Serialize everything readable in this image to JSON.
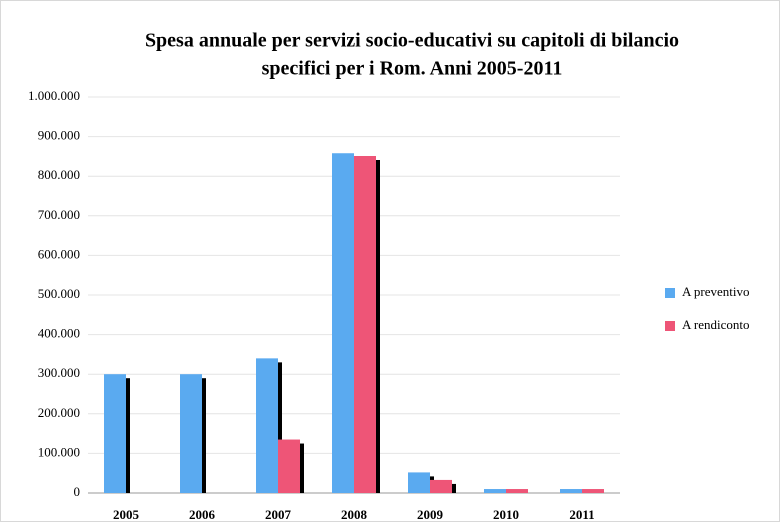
{
  "chart_data": {
    "type": "bar",
    "title": [
      "Spesa annuale per servizi socio-educativi su capitoli di bilancio",
      "specifici per i Rom. Anni 2005-2011"
    ],
    "categories": [
      "2005",
      "2006",
      "2007",
      "2008",
      "2009",
      "2010",
      "2011"
    ],
    "series": [
      {
        "name": "A preventivo",
        "color": "#5aaaf0",
        "values": [
          300000,
          300000,
          340000,
          858000,
          52000,
          10000,
          10000
        ]
      },
      {
        "name": "A rendiconto",
        "color": "#ee5577",
        "values": [
          0,
          0,
          135000,
          851000,
          33000,
          10000,
          10000
        ]
      }
    ],
    "ylim": [
      0,
      1000000
    ],
    "yticks": [
      0,
      {
        "value": 100000,
        "label": "100.000"
      },
      {
        "value": 200000,
        "label": "200.000"
      },
      {
        "value": 300000,
        "label": "300.000"
      },
      {
        "value": 400000,
        "label": "400.000"
      },
      {
        "value": 500000,
        "label": "500.000"
      },
      {
        "value": 600000,
        "label": "600.000"
      },
      {
        "value": 700000,
        "label": "700.000"
      },
      {
        "value": 800000,
        "label": "800.000"
      },
      {
        "value": 900000,
        "label": "900.000"
      },
      {
        "value": 1000000,
        "label": "1.000.000"
      }
    ],
    "grid": true,
    "legend": "right"
  }
}
